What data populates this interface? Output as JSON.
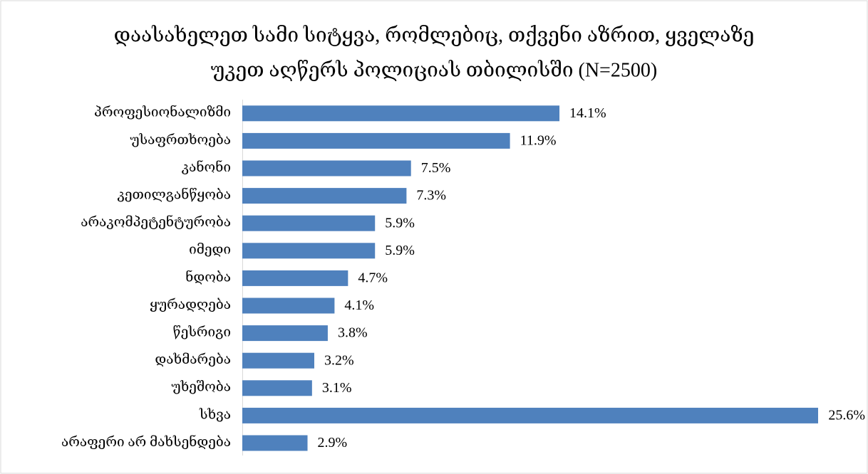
{
  "chart_data": {
    "type": "bar",
    "orientation": "horizontal",
    "title": [
      "დაასახელეთ სამი სიტყვა, რომლებიც, თქვენი აზრით, ყველაზე",
      "უკეთ აღწერს პოლიციას თბილისში (N=2500)"
    ],
    "categories": [
      "პროფესიონალიზმი",
      "უსაფრთხოება",
      "კანონი",
      "კეთილგანწყობა",
      "არაკომპეტენტურობა",
      "იმედი",
      "ნდობა",
      "ყურადღება",
      "წესრიგი",
      "დახმარება",
      "უხეშობა",
      "სხვა",
      "არაფერი არ მახსენდება"
    ],
    "values": [
      14.1,
      11.9,
      7.5,
      7.3,
      5.9,
      5.9,
      4.7,
      4.1,
      3.8,
      3.2,
      3.1,
      25.6,
      2.9
    ],
    "value_labels": [
      "14.1%",
      "11.9%",
      "7.5%",
      "7.3%",
      "5.9%",
      "5.9%",
      "4.7%",
      "4.1%",
      "3.8%",
      "3.2%",
      "3.1%",
      "25.6%",
      "2.9%"
    ],
    "color": "#4f81bd"
  }
}
